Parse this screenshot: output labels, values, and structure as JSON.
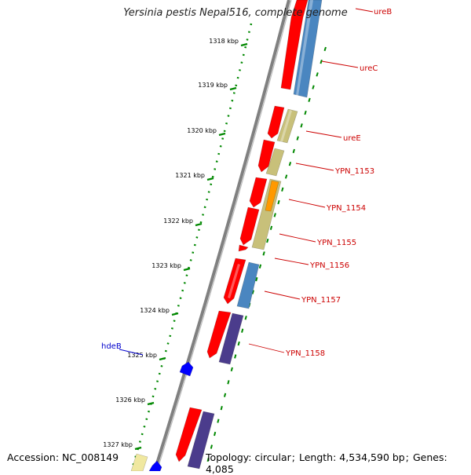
{
  "header": {
    "title": "Yersinia pestis Nepal516, complete genome"
  },
  "footer": {
    "accession_label": "Accession:",
    "accession": "NC_008149",
    "topology_label": "Topology:",
    "topology": "circular",
    "length_label": "Length:",
    "length": "4,534,590 bp",
    "genes_label": "Genes:",
    "genes": "4,085"
  },
  "colors": {
    "forward_strand": "#ff0000",
    "reverse_blue": "#4a86c0",
    "reverse_olive": "#c8c07a",
    "reverse_purple": "#4b3c8c",
    "orange_feature": "#ff9900",
    "minus_strand_blue": "#0000ff",
    "backbone": "#808080",
    "tick": "#008800",
    "label_plus": "#cc0000",
    "label_minus": "#0000cc"
  },
  "ticks": [
    {
      "label": "1318 kbp",
      "anchor_label": true
    },
    {
      "label": "1319 kbp",
      "anchor_label": true
    },
    {
      "label": "1320 kbp",
      "anchor_label": true
    },
    {
      "label": "1321 kbp",
      "anchor_label": true
    },
    {
      "label": "1322 kbp",
      "anchor_label": true
    },
    {
      "label": "1323 kbp",
      "anchor_label": true
    },
    {
      "label": "1324 kbp",
      "anchor_label": true
    },
    {
      "label": "1325 kbp",
      "anchor_label": true
    },
    {
      "label": "1326 kbp",
      "anchor_label": true
    },
    {
      "label": "1327 kbp",
      "anchor_label": true
    }
  ],
  "gene_labels": [
    {
      "name": "ureB",
      "strand": "plus"
    },
    {
      "name": "ureC",
      "strand": "plus"
    },
    {
      "name": "ureE",
      "strand": "plus"
    },
    {
      "name": "YPN_1153",
      "strand": "plus"
    },
    {
      "name": "YPN_1154",
      "strand": "plus"
    },
    {
      "name": "YPN_1155",
      "strand": "plus"
    },
    {
      "name": "YPN_1156",
      "strand": "plus"
    },
    {
      "name": "YPN_1157",
      "strand": "plus"
    },
    {
      "name": "YPN_1158",
      "strand": "plus"
    },
    {
      "name": "hdeB",
      "strand": "minus"
    }
  ]
}
